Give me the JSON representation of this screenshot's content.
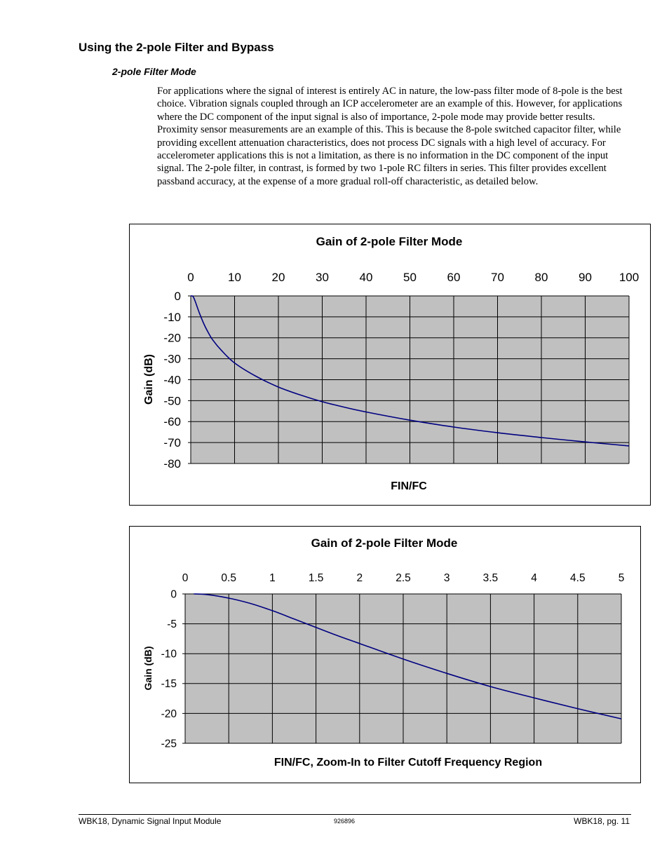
{
  "heading": "Using the 2-pole Filter and Bypass",
  "subheading": "2-pole Filter Mode",
  "paragraph": "For applications where the signal of interest is entirely AC in nature, the low-pass filter mode of 8-pole is the best choice.  Vibration signals coupled through an ICP accelerometer are an example of this.  However, for applications where the DC component of the input signal is also of importance, 2-pole mode may provide better results.  Proximity sensor measurements are an example of this.  This is because the 8-pole switched capacitor filter, while providing excellent attenuation characteristics, does not process DC signals with a high level of accuracy.  For accelerometer applications this is not a limitation, as there is no information in the DC component of the input signal.  The 2-pole filter, in contrast, is formed by two 1-pole RC filters in series.  This filter provides excellent passband accuracy, at the expense of a more gradual roll-off characteristic, as detailed below.",
  "chart_data": [
    {
      "type": "line",
      "title": "Gain of 2-pole Filter Mode",
      "xlabel": "FIN/FC",
      "ylabel": "Gain (dB)",
      "xlim": [
        0,
        100
      ],
      "ylim": [
        -80,
        0
      ],
      "x_ticks": [
        "0",
        "10",
        "20",
        "30",
        "40",
        "50",
        "60",
        "70",
        "80",
        "90",
        "100"
      ],
      "y_ticks": [
        "0",
        "-10",
        "-20",
        "-30",
        "-40",
        "-50",
        "-60",
        "-70",
        "-80"
      ],
      "grid": true,
      "plot_bg": "#c0c0c0",
      "line_color": "#000080",
      "series": [
        {
          "x": [
            0,
            0.5,
            1,
            2,
            3,
            4,
            5,
            7,
            10,
            15,
            20,
            25,
            30,
            35,
            40,
            50,
            60,
            70,
            80,
            90,
            100
          ],
          "y": [
            0,
            -0.2,
            -2.5,
            -8.3,
            -13.4,
            -17.5,
            -21,
            -26,
            -32,
            -38.5,
            -43.5,
            -47.3,
            -50.5,
            -53.1,
            -55.4,
            -59.3,
            -62.6,
            -65.3,
            -67.6,
            -69.7,
            -71.6
          ]
        }
      ]
    },
    {
      "type": "line",
      "title": "Gain of 2-pole Filter Mode",
      "xlabel": "FIN/FC, Zoom-In to Filter Cutoff Frequency Region",
      "ylabel": "Gain (dB)",
      "xlim": [
        0,
        5
      ],
      "ylim": [
        -25,
        0
      ],
      "x_ticks": [
        "0",
        "0.5",
        "1",
        "1.5",
        "2",
        "2.5",
        "3",
        "3.5",
        "4",
        "4.5",
        "5"
      ],
      "y_ticks": [
        "0",
        "-5",
        "-10",
        "-15",
        "-20",
        "-25"
      ],
      "grid": true,
      "plot_bg": "#c0c0c0",
      "line_color": "#000080",
      "series": [
        {
          "x": [
            0.1,
            0.25,
            0.5,
            0.75,
            1,
            1.25,
            1.5,
            1.75,
            2,
            2.5,
            3,
            3.5,
            4,
            4.5,
            5
          ],
          "y": [
            0,
            -0.1,
            -0.7,
            -1.6,
            -2.8,
            -4.2,
            -5.6,
            -7.0,
            -8.3,
            -10.9,
            -13.3,
            -15.5,
            -17.4,
            -19.2,
            -20.9
          ]
        }
      ]
    }
  ],
  "footer": {
    "left": "WBK18, Dynamic Signal Input Module",
    "center": "926896",
    "right": "WBK18, pg. 11"
  }
}
